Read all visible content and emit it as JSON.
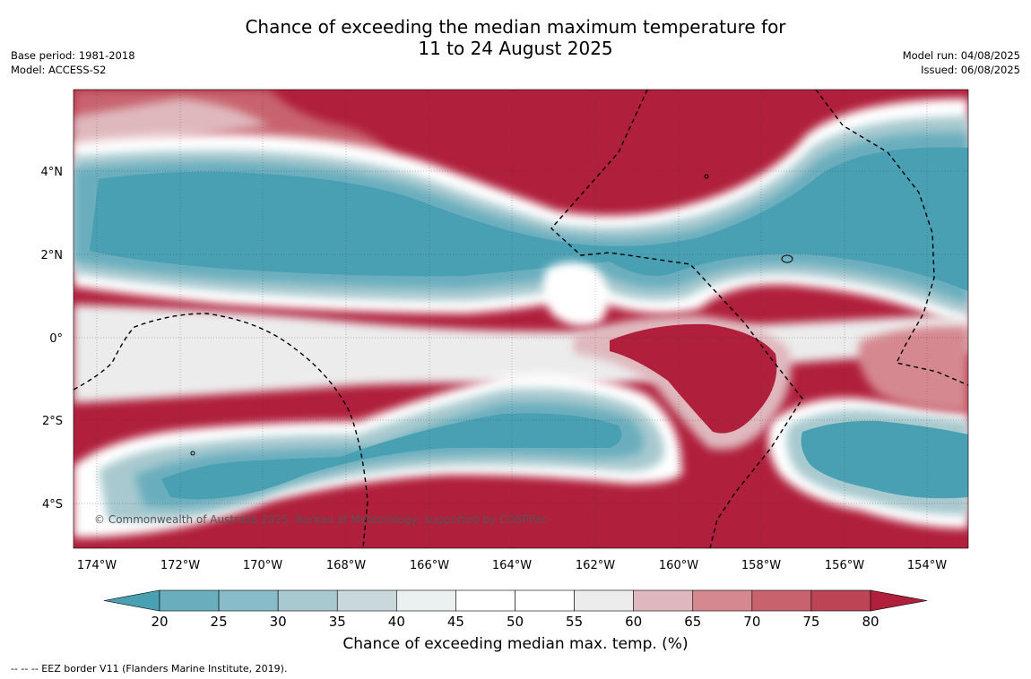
{
  "title_line1": "Chance of exceeding the median maximum temperature for",
  "title_line2": "11 to 24 August 2025",
  "meta_left": {
    "base_period": "Base period: 1981-2018",
    "model": "Model: ACCESS-S2"
  },
  "meta_right": {
    "model_run": "Model run: 04/08/2025",
    "issued": "Issued: 06/08/2025"
  },
  "lon_ticks": [
    "174°W",
    "172°W",
    "170°W",
    "168°W",
    "166°W",
    "164°W",
    "162°W",
    "160°W",
    "158°W",
    "156°W",
    "154°W"
  ],
  "lat_ticks": [
    "4°N",
    "2°N",
    "0°",
    "2°S",
    "4°S"
  ],
  "copyright": "© Commonwealth of Australia 2025, Bureau of Meteorology, supported by COSPPac",
  "colorbar": {
    "ticks": [
      "20",
      "25",
      "30",
      "35",
      "40",
      "45",
      "50",
      "55",
      "60",
      "65",
      "70",
      "75",
      "80"
    ],
    "colors": [
      "#4aa0b3",
      "#6aaebe",
      "#88bcc8",
      "#a7c9cf",
      "#c9d9db",
      "#ebf0f0",
      "#ffffff",
      "#ffffff",
      "#ececec",
      "#dfb8bd",
      "#d5888f",
      "#c8636e",
      "#bd4455",
      "#b01f3b"
    ],
    "label": "Chance of exceeding median max. temp. (%)"
  },
  "footer": "--  --  -- EEZ border V11 (Flanders Marine Institute, 2019)."
}
